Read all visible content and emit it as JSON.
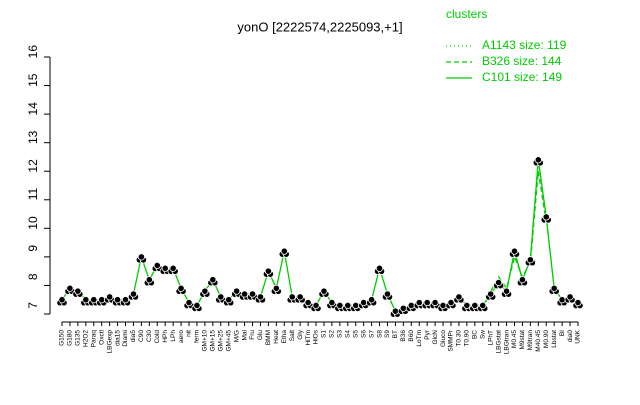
{
  "chart_data": {
    "type": "line",
    "title": "yonO [2222574,2225093,+1]",
    "legend_title": "clusters",
    "legend_color": "#00cc00",
    "categories": [
      "G150",
      "G180",
      "G135",
      "H2O2",
      "Paraq",
      "Oxctl",
      "LBGexp",
      "dia15",
      "Diami",
      "dia5",
      "C90",
      "C30",
      "Cold",
      "HPh",
      "LPh",
      "aero",
      "nit",
      "ferm",
      "GM+10",
      "GM+15",
      "GM+25",
      "GM+45",
      "M/G",
      "Mal",
      "Fru",
      "Glu",
      "BMM",
      "Heat",
      "Etha",
      "Salt",
      "Gly",
      "HiTm",
      "HiOs",
      "S1",
      "S2",
      "S3",
      "S4",
      "S5",
      "S6",
      "S7",
      "S8",
      "S9",
      "BT",
      "B36",
      "B60",
      "LoTm",
      "Pyr",
      "GlcN",
      "Gluco",
      "SMMPr",
      "T0.30",
      "T0.90",
      "BC",
      "Sw",
      "LPhT",
      "LBGstat",
      "LBGtran",
      "M0.45",
      "M9stat",
      "M9tran",
      "M40.45",
      "M0.90",
      "Lbstat",
      "BI",
      "dia0",
      "UNK"
    ],
    "series": [
      {
        "name": "A1143 size: 119",
        "color": "#00cc00",
        "dash": "dotted",
        "values": [
          null,
          null,
          null,
          null,
          null,
          null,
          null,
          null,
          null,
          null,
          null,
          null,
          null,
          null,
          null,
          null,
          null,
          null,
          null,
          null,
          null,
          null,
          null,
          null,
          null,
          null,
          null,
          null,
          null,
          null,
          null,
          null,
          null,
          null,
          null,
          null,
          null,
          null,
          null,
          null,
          null,
          null,
          null,
          null,
          null,
          null,
          null,
          null,
          null,
          null,
          7.6,
          7.3,
          7.3,
          7.3,
          7.7,
          8.1,
          7.8,
          9.2,
          8.2,
          8.9,
          12.4,
          10.4,
          7.9,
          7.5,
          7.6,
          7.4
        ]
      },
      {
        "name": "B326 size: 144",
        "color": "#00cc00",
        "dash": "dashed",
        "values": [
          null,
          null,
          null,
          null,
          null,
          null,
          null,
          null,
          null,
          null,
          null,
          null,
          null,
          null,
          null,
          null,
          null,
          null,
          null,
          null,
          null,
          null,
          null,
          null,
          null,
          null,
          null,
          null,
          null,
          null,
          null,
          null,
          null,
          null,
          null,
          null,
          null,
          null,
          null,
          null,
          null,
          null,
          null,
          null,
          null,
          null,
          null,
          null,
          null,
          null,
          null,
          null,
          null,
          null,
          7.8,
          8.3,
          7.9,
          9.0,
          8.3,
          8.8,
          12.0,
          10.2,
          null,
          null,
          null,
          null
        ]
      },
      {
        "name": "C101 size: 149",
        "color": "#00cc00",
        "dash": "solid",
        "values": [
          7.5,
          7.9,
          7.8,
          7.5,
          7.5,
          7.5,
          7.6,
          7.5,
          7.5,
          7.7,
          9.0,
          8.2,
          8.7,
          8.6,
          8.6,
          7.9,
          7.4,
          7.3,
          7.8,
          8.2,
          7.6,
          7.5,
          7.8,
          7.7,
          7.7,
          7.6,
          8.5,
          7.9,
          9.2,
          7.6,
          7.6,
          7.4,
          7.3,
          7.8,
          7.4,
          7.3,
          7.3,
          7.3,
          7.4,
          7.5,
          8.6,
          7.7,
          7.1,
          7.2,
          7.3,
          7.4,
          7.4,
          7.4,
          7.3,
          7.4,
          7.6,
          7.3,
          7.3,
          7.3,
          7.7,
          8.1,
          7.8,
          9.2,
          8.2,
          8.9,
          12.4,
          10.4,
          7.9,
          7.5,
          7.6,
          7.4
        ]
      }
    ],
    "ylim": [
      7,
      16
    ],
    "yticks": [
      7,
      8,
      9,
      10,
      11,
      12,
      13,
      14,
      15,
      16
    ]
  }
}
